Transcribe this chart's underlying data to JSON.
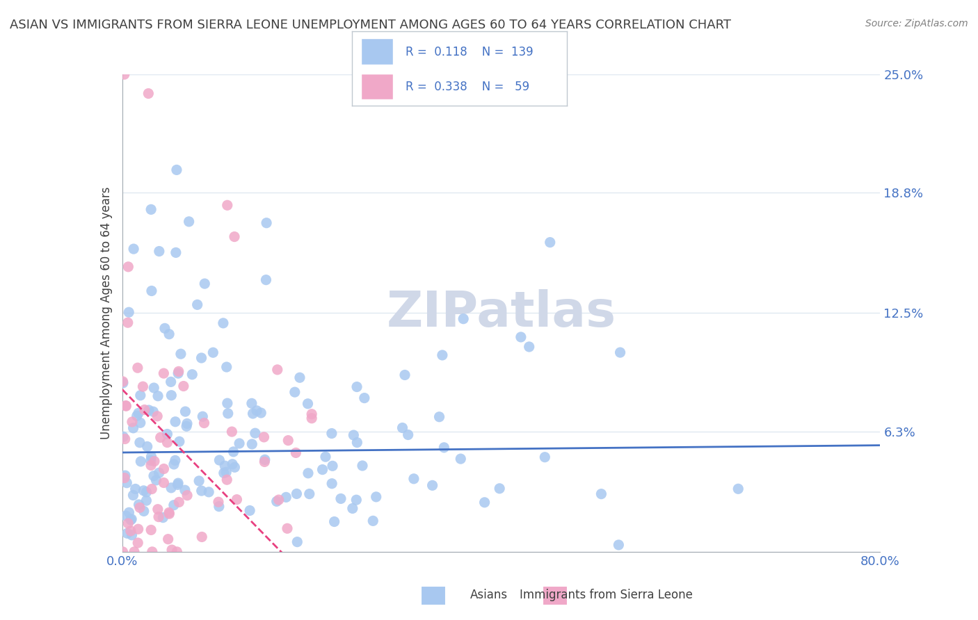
{
  "title": "ASIAN VS IMMIGRANTS FROM SIERRA LEONE UNEMPLOYMENT AMONG AGES 60 TO 64 YEARS CORRELATION CHART",
  "source": "Source: ZipAtlas.com",
  "xlabel": "",
  "ylabel": "Unemployment Among Ages 60 to 64 years",
  "xmin": 0.0,
  "xmax": 80.0,
  "ymin": 0.0,
  "ymax": 25.0,
  "yticks": [
    0.0,
    6.3,
    12.5,
    18.8,
    25.0
  ],
  "ytick_labels": [
    "",
    "6.3%",
    "12.5%",
    "18.8%",
    "25.0%"
  ],
  "xtick_labels": [
    "0.0%",
    "",
    "",
    "",
    "",
    "",
    "",
    "",
    "80.0%"
  ],
  "asian_R": 0.118,
  "asian_N": 139,
  "sierra_R": 0.338,
  "sierra_N": 59,
  "asian_color": "#a8c8f0",
  "sierra_color": "#f0a8c8",
  "asian_line_color": "#4472c4",
  "sierra_line_color": "#e84080",
  "legend_text_color": "#4472c4",
  "title_color": "#404040",
  "watermark_color": "#d0d8e8",
  "background_color": "#ffffff",
  "grid_color": "#e0e8f0",
  "axis_color": "#a0a8b0",
  "tick_color": "#4472c4"
}
